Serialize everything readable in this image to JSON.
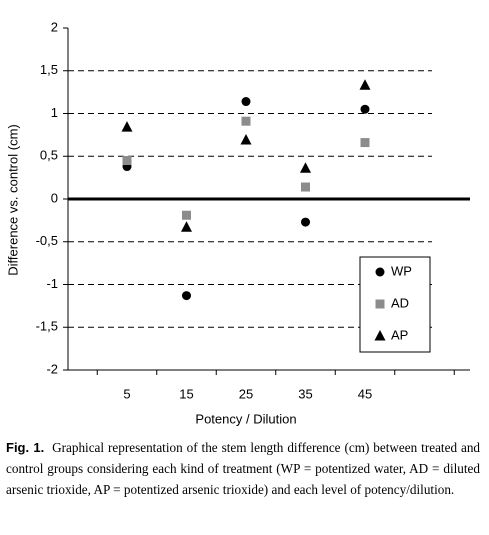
{
  "chart_data": {
    "type": "scatter",
    "categories": [
      5,
      15,
      25,
      35,
      45
    ],
    "xlabel": "Potency / Dilution",
    "ylabel": "Difference vs. control (cm)",
    "ylim": [
      -2,
      2
    ],
    "yticks": [
      -2,
      {
        "value": -1.5,
        "label": "-1,5"
      },
      -1,
      {
        "value": -0.5,
        "label": "-0,5"
      },
      0,
      {
        "value": 0.5,
        "label": "0,5"
      },
      1,
      {
        "value": 1.5,
        "label": "1,5"
      },
      2
    ],
    "grid": true,
    "legend": "lower right",
    "series": [
      {
        "name": "WP",
        "color": "#000000",
        "marker": "circle",
        "values": [
          0.38,
          -1.13,
          1.14,
          -0.27,
          1.05
        ]
      },
      {
        "name": "AD",
        "color": "#8c8c8c",
        "marker": "square",
        "values": [
          0.45,
          -0.19,
          0.91,
          0.14,
          0.66
        ]
      },
      {
        "name": "AP",
        "color": "#000000",
        "marker": "triangle",
        "values": [
          0.84,
          -0.33,
          0.69,
          0.36,
          1.33
        ]
      }
    ]
  },
  "caption": {
    "label": "Fig. 1.",
    "text": "Graphical representation of the stem length difference (cm) between treated and control groups considering each kind of treatment (WP = potentized water, AD = diluted arsenic trioxide, AP = potentized arsenic trioxide) and each level of potency/dilution."
  }
}
